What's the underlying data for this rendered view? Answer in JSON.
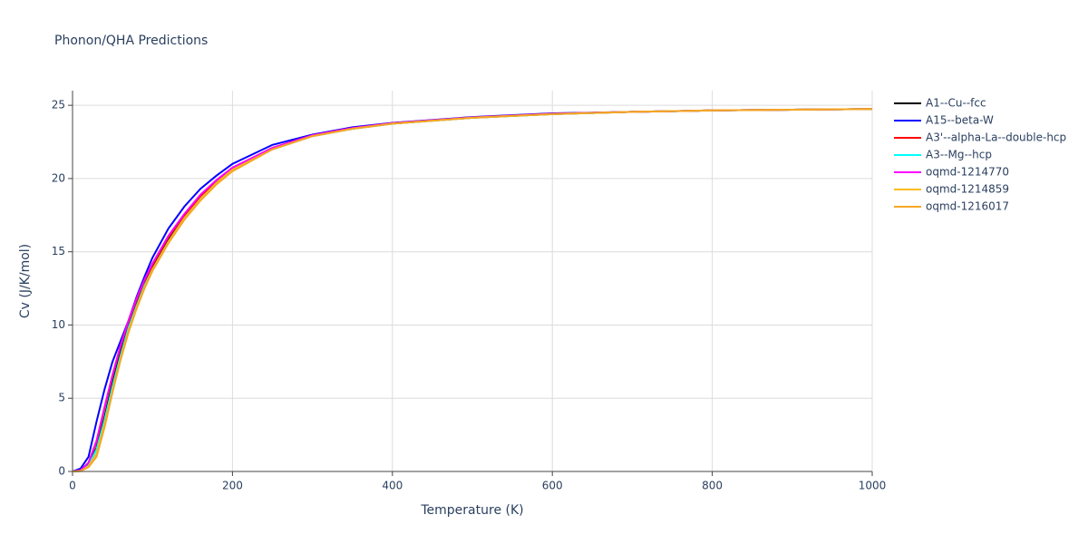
{
  "chart_data": {
    "type": "line",
    "title": "Phonon/QHA Predictions",
    "x_label": "Temperature (K)",
    "y_label": "Cv (J/K/mol)",
    "x": [
      0,
      10,
      20,
      30,
      40,
      50,
      60,
      70,
      80,
      90,
      100,
      120,
      140,
      160,
      180,
      200,
      250,
      300,
      350,
      400,
      500,
      600,
      700,
      800,
      900,
      1000
    ],
    "xlim": [
      0,
      1000
    ],
    "ylim": [
      0,
      26
    ],
    "xticks": [
      0,
      200,
      400,
      600,
      800,
      1000
    ],
    "yticks": [
      0,
      5,
      10,
      15,
      20,
      25
    ],
    "grid": true,
    "legend": "right",
    "series": [
      {
        "name": "A1--Cu--fcc",
        "color": "#000000",
        "values": [
          0,
          0.05,
          0.45,
          1.6,
          3.7,
          6.0,
          8.1,
          9.9,
          11.4,
          12.8,
          13.9,
          15.8,
          17.3,
          18.6,
          19.7,
          20.6,
          22.0,
          22.9,
          23.4,
          23.75,
          24.15,
          24.4,
          24.55,
          24.65,
          24.7,
          24.75
        ]
      },
      {
        "name": "A15--beta-W",
        "color": "#0000ff",
        "values": [
          0,
          0.2,
          1.0,
          3.4,
          5.6,
          7.5,
          8.9,
          10.3,
          11.9,
          13.3,
          14.6,
          16.6,
          18.1,
          19.3,
          20.2,
          21.0,
          22.3,
          23.0,
          23.5,
          23.8,
          24.2,
          24.45,
          24.55,
          24.65,
          24.7,
          24.75
        ]
      },
      {
        "name": "A3'--alpha-La--double-hcp",
        "color": "#ff0000",
        "values": [
          0,
          0.08,
          0.6,
          2.0,
          4.3,
          6.5,
          8.5,
          10.2,
          11.7,
          13.0,
          14.1,
          16.0,
          17.5,
          18.8,
          19.8,
          20.7,
          22.1,
          22.95,
          23.45,
          23.78,
          24.17,
          24.42,
          24.55,
          24.65,
          24.7,
          24.75
        ]
      },
      {
        "name": "A3--Mg--hcp",
        "color": "#00ffff",
        "values": [
          0,
          0.05,
          0.4,
          1.5,
          3.5,
          5.8,
          7.9,
          9.8,
          11.3,
          12.7,
          13.8,
          15.7,
          17.3,
          18.6,
          19.7,
          20.6,
          22.0,
          22.9,
          23.4,
          23.75,
          24.15,
          24.4,
          24.55,
          24.65,
          24.7,
          24.75
        ]
      },
      {
        "name": "oqmd-1214770",
        "color": "#ff00ff",
        "values": [
          0,
          0.08,
          0.6,
          2.1,
          4.4,
          6.6,
          8.6,
          10.3,
          11.8,
          13.1,
          14.2,
          16.1,
          17.6,
          18.9,
          19.9,
          20.75,
          22.1,
          22.95,
          23.45,
          23.78,
          24.17,
          24.42,
          24.55,
          24.65,
          24.7,
          24.75
        ]
      },
      {
        "name": "oqmd-1214859",
        "color": "#fbbc1b",
        "values": [
          0,
          0.03,
          0.35,
          1.2,
          3.2,
          5.5,
          7.7,
          9.6,
          11.2,
          12.6,
          13.8,
          15.7,
          17.3,
          18.6,
          19.7,
          20.6,
          22.0,
          22.9,
          23.4,
          23.75,
          24.15,
          24.4,
          24.55,
          24.65,
          24.7,
          24.75
        ]
      },
      {
        "name": "oqmd-1216017",
        "color": "#f5a623",
        "values": [
          0,
          0.02,
          0.3,
          1.0,
          3.0,
          5.4,
          7.6,
          9.5,
          11.1,
          12.5,
          13.7,
          15.6,
          17.2,
          18.5,
          19.6,
          20.5,
          22.0,
          22.9,
          23.4,
          23.75,
          24.15,
          24.4,
          24.55,
          24.65,
          24.7,
          24.75
        ]
      }
    ]
  }
}
